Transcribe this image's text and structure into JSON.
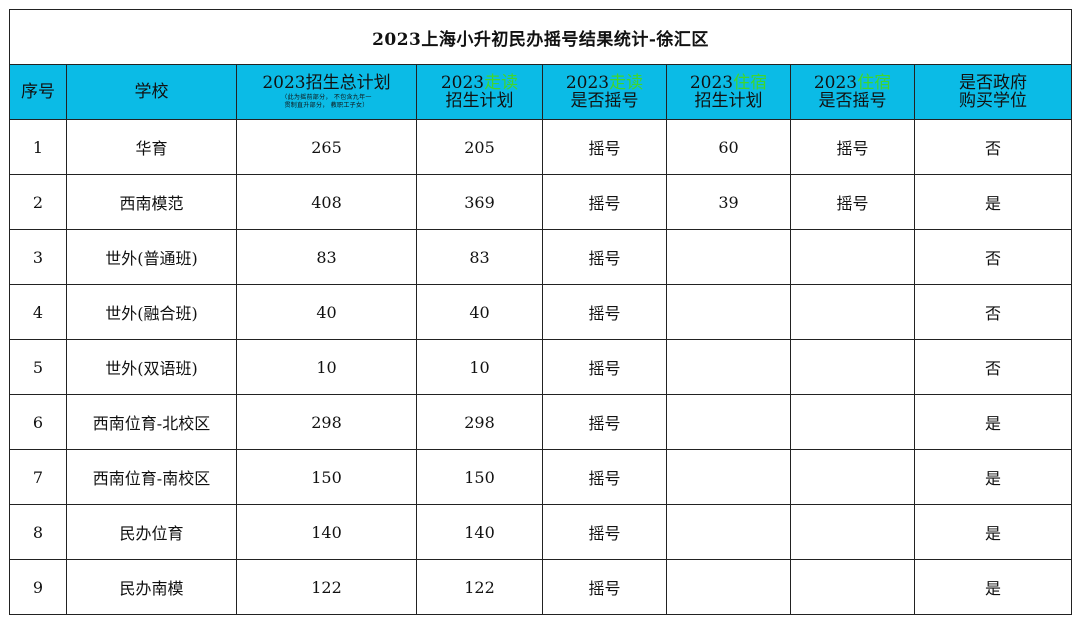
{
  "title": "2023上海小升初民办摇号结果统计-徐汇区",
  "headers": {
    "seq": "序号",
    "school": "学校",
    "total_plan": "2023招生总计划",
    "total_note_1": "（此为摇前部分，  不包含九年一",
    "total_note_2": "贯制直升部分，  教职工子女）",
    "day_plan_year": "2023",
    "day_plan_hl": "走读",
    "day_plan_rest": "招生计划",
    "day_lottery_year": "2023",
    "day_lottery_hl": "走读",
    "day_lottery_rest": "是否摇号",
    "board_plan_year": "2023",
    "board_plan_hl": "住宿",
    "board_plan_rest": "招生计划",
    "board_lottery_year": "2023",
    "board_lottery_hl": "住宿",
    "board_lottery_rest": "是否摇号",
    "gov_line1": "是否政府",
    "gov_line2": "购买学位"
  },
  "rows": [
    {
      "seq": "1",
      "school": "华育",
      "total": "265",
      "day_plan": "205",
      "day_lottery": "摇号",
      "board_plan": "60",
      "board_lottery": "摇号",
      "gov": "否"
    },
    {
      "seq": "2",
      "school": "西南模范",
      "total": "408",
      "day_plan": "369",
      "day_lottery": "摇号",
      "board_plan": "39",
      "board_lottery": "摇号",
      "gov": "是"
    },
    {
      "seq": "3",
      "school": "世外(普通班)",
      "total": "83",
      "day_plan": "83",
      "day_lottery": "摇号",
      "board_plan": "",
      "board_lottery": "",
      "gov": "否"
    },
    {
      "seq": "4",
      "school": "世外(融合班)",
      "total": "40",
      "day_plan": "40",
      "day_lottery": "摇号",
      "board_plan": "",
      "board_lottery": "",
      "gov": "否"
    },
    {
      "seq": "5",
      "school": "世外(双语班)",
      "total": "10",
      "day_plan": "10",
      "day_lottery": "摇号",
      "board_plan": "",
      "board_lottery": "",
      "gov": "否"
    },
    {
      "seq": "6",
      "school": "西南位育-北校区",
      "total": "298",
      "day_plan": "298",
      "day_lottery": "摇号",
      "board_plan": "",
      "board_lottery": "",
      "gov": "是"
    },
    {
      "seq": "7",
      "school": "西南位育-南校区",
      "total": "150",
      "day_plan": "150",
      "day_lottery": "摇号",
      "board_plan": "",
      "board_lottery": "",
      "gov": "是"
    },
    {
      "seq": "8",
      "school": "民办位育",
      "total": "140",
      "day_plan": "140",
      "day_lottery": "摇号",
      "board_plan": "",
      "board_lottery": "",
      "gov": "是"
    },
    {
      "seq": "9",
      "school": "民办南模",
      "total": "122",
      "day_plan": "122",
      "day_lottery": "摇号",
      "board_plan": "",
      "board_lottery": "",
      "gov": "是"
    }
  ],
  "colors": {
    "header_bg": "#0bbbe6",
    "highlight": "#3fd62e",
    "border": "#222222"
  }
}
